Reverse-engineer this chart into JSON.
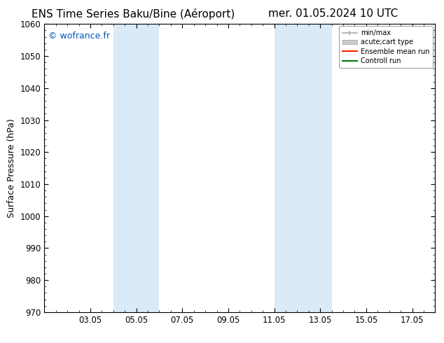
{
  "title_left": "ENS Time Series Baku/Bine (Aéroport)",
  "title_right": "mer. 01.05.2024 10 UTC",
  "ylabel": "Surface Pressure (hPa)",
  "ylim": [
    970,
    1060
  ],
  "yticks": [
    970,
    980,
    990,
    1000,
    1010,
    1020,
    1030,
    1040,
    1050,
    1060
  ],
  "xtick_labels": [
    "03.05",
    "05.05",
    "07.05",
    "09.05",
    "11.05",
    "13.05",
    "15.05",
    "17.05"
  ],
  "xtick_positions": [
    3,
    5,
    7,
    9,
    11,
    13,
    15,
    17
  ],
  "xlim": [
    1,
    18
  ],
  "shaded_bands": [
    {
      "x_start": 4.0,
      "x_end": 6.0
    },
    {
      "x_start": 11.0,
      "x_end": 13.5
    }
  ],
  "watermark": "© wofrance.fr",
  "watermark_color": "#0055bb",
  "background_color": "#ffffff",
  "plot_bg_color": "#ffffff",
  "band_color": "#daeaf7",
  "title_fontsize": 11,
  "tick_fontsize": 8.5,
  "ylabel_fontsize": 9
}
